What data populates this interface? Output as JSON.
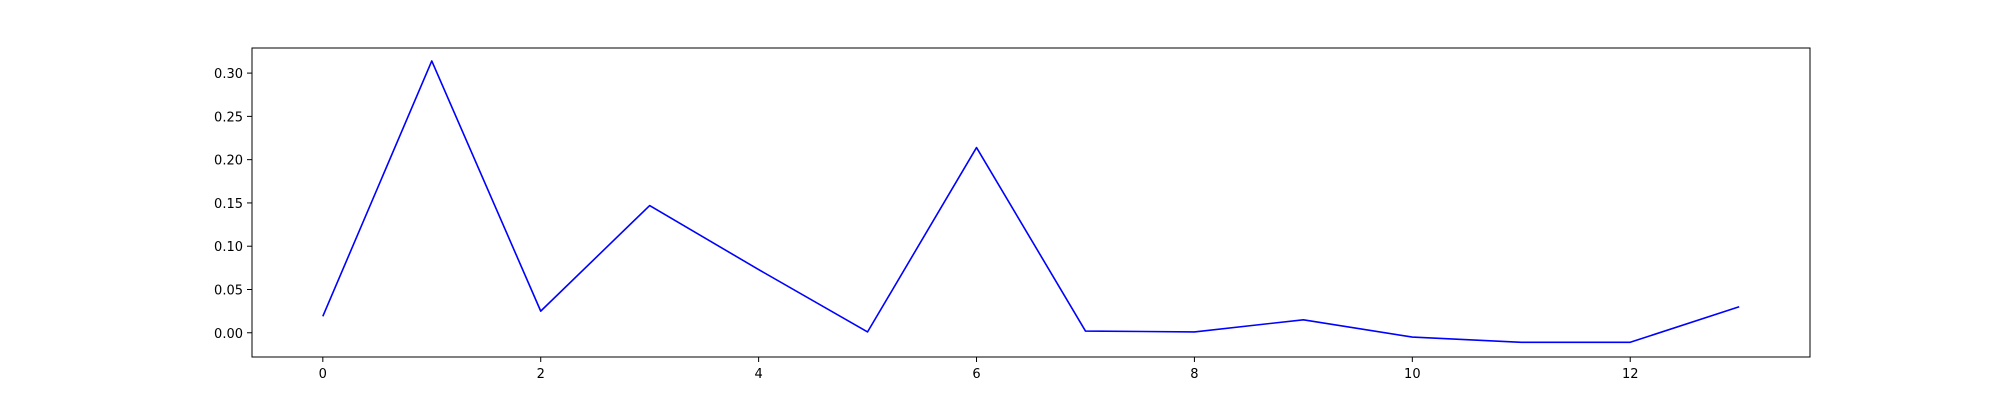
{
  "chart_data": {
    "type": "line",
    "title": "",
    "xlabel": "",
    "ylabel": "",
    "xlim": [
      -0.65,
      13.65
    ],
    "ylim": [
      -0.028,
      0.329
    ],
    "xticks": [
      0,
      2,
      4,
      6,
      8,
      10,
      12
    ],
    "xtick_labels": [
      "0",
      "2",
      "4",
      "6",
      "8",
      "10",
      "12"
    ],
    "yticks": [
      0.0,
      0.05,
      0.1,
      0.15,
      0.2,
      0.25,
      0.3
    ],
    "ytick_labels": [
      "0.00",
      "0.05",
      "0.10",
      "0.15",
      "0.20",
      "0.25",
      "0.30"
    ],
    "grid": false,
    "series": [
      {
        "color": "#0000ff",
        "x": [
          0,
          1,
          2,
          3,
          4,
          5,
          6,
          7,
          8,
          9,
          10,
          11,
          12,
          13
        ],
        "y": [
          0.019,
          0.314,
          0.025,
          0.147,
          0.073,
          0.001,
          0.214,
          0.002,
          0.001,
          0.015,
          -0.005,
          -0.011,
          -0.011,
          0.03
        ]
      }
    ]
  }
}
